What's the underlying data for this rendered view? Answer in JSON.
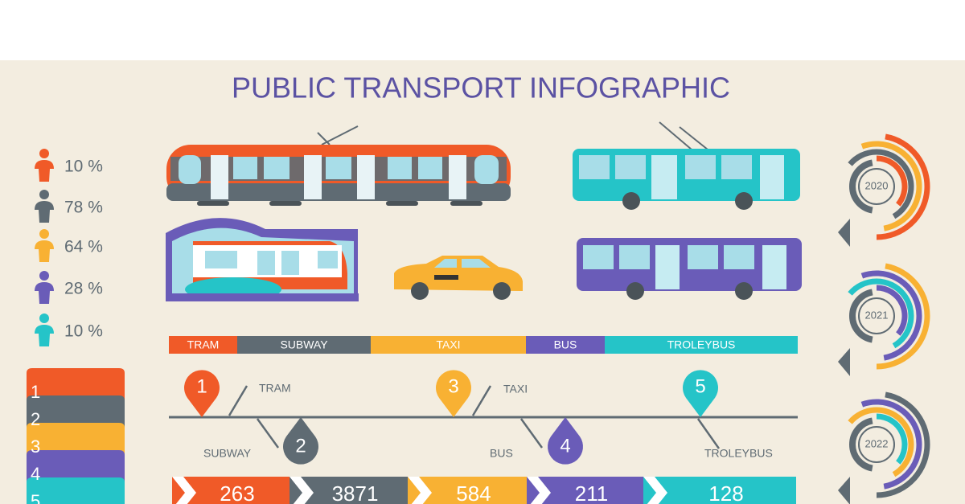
{
  "title": "PUBLIC TRANSPORT INFOGRAPHIC",
  "percentages": [
    "10 %",
    "78 %",
    "64 %",
    "28 %",
    "10 %"
  ],
  "steps": [
    "1",
    "2",
    "3",
    "4",
    "5"
  ],
  "categories": [
    "TRAM",
    "SUBWAY",
    "TAXI",
    "BUS",
    "TROLEYBUS"
  ],
  "timeline": [
    {
      "number": "1",
      "label": "TRAM"
    },
    {
      "number": "2",
      "label": "SUBWAY"
    },
    {
      "number": "3",
      "label": "TAXI"
    },
    {
      "number": "4",
      "label": "BUS"
    },
    {
      "number": "5",
      "label": "TROLEYBUS"
    }
  ],
  "totals": [
    "263",
    "3871",
    "584",
    "211",
    "128"
  ],
  "years": [
    "2020",
    "2021",
    "2022"
  ]
}
